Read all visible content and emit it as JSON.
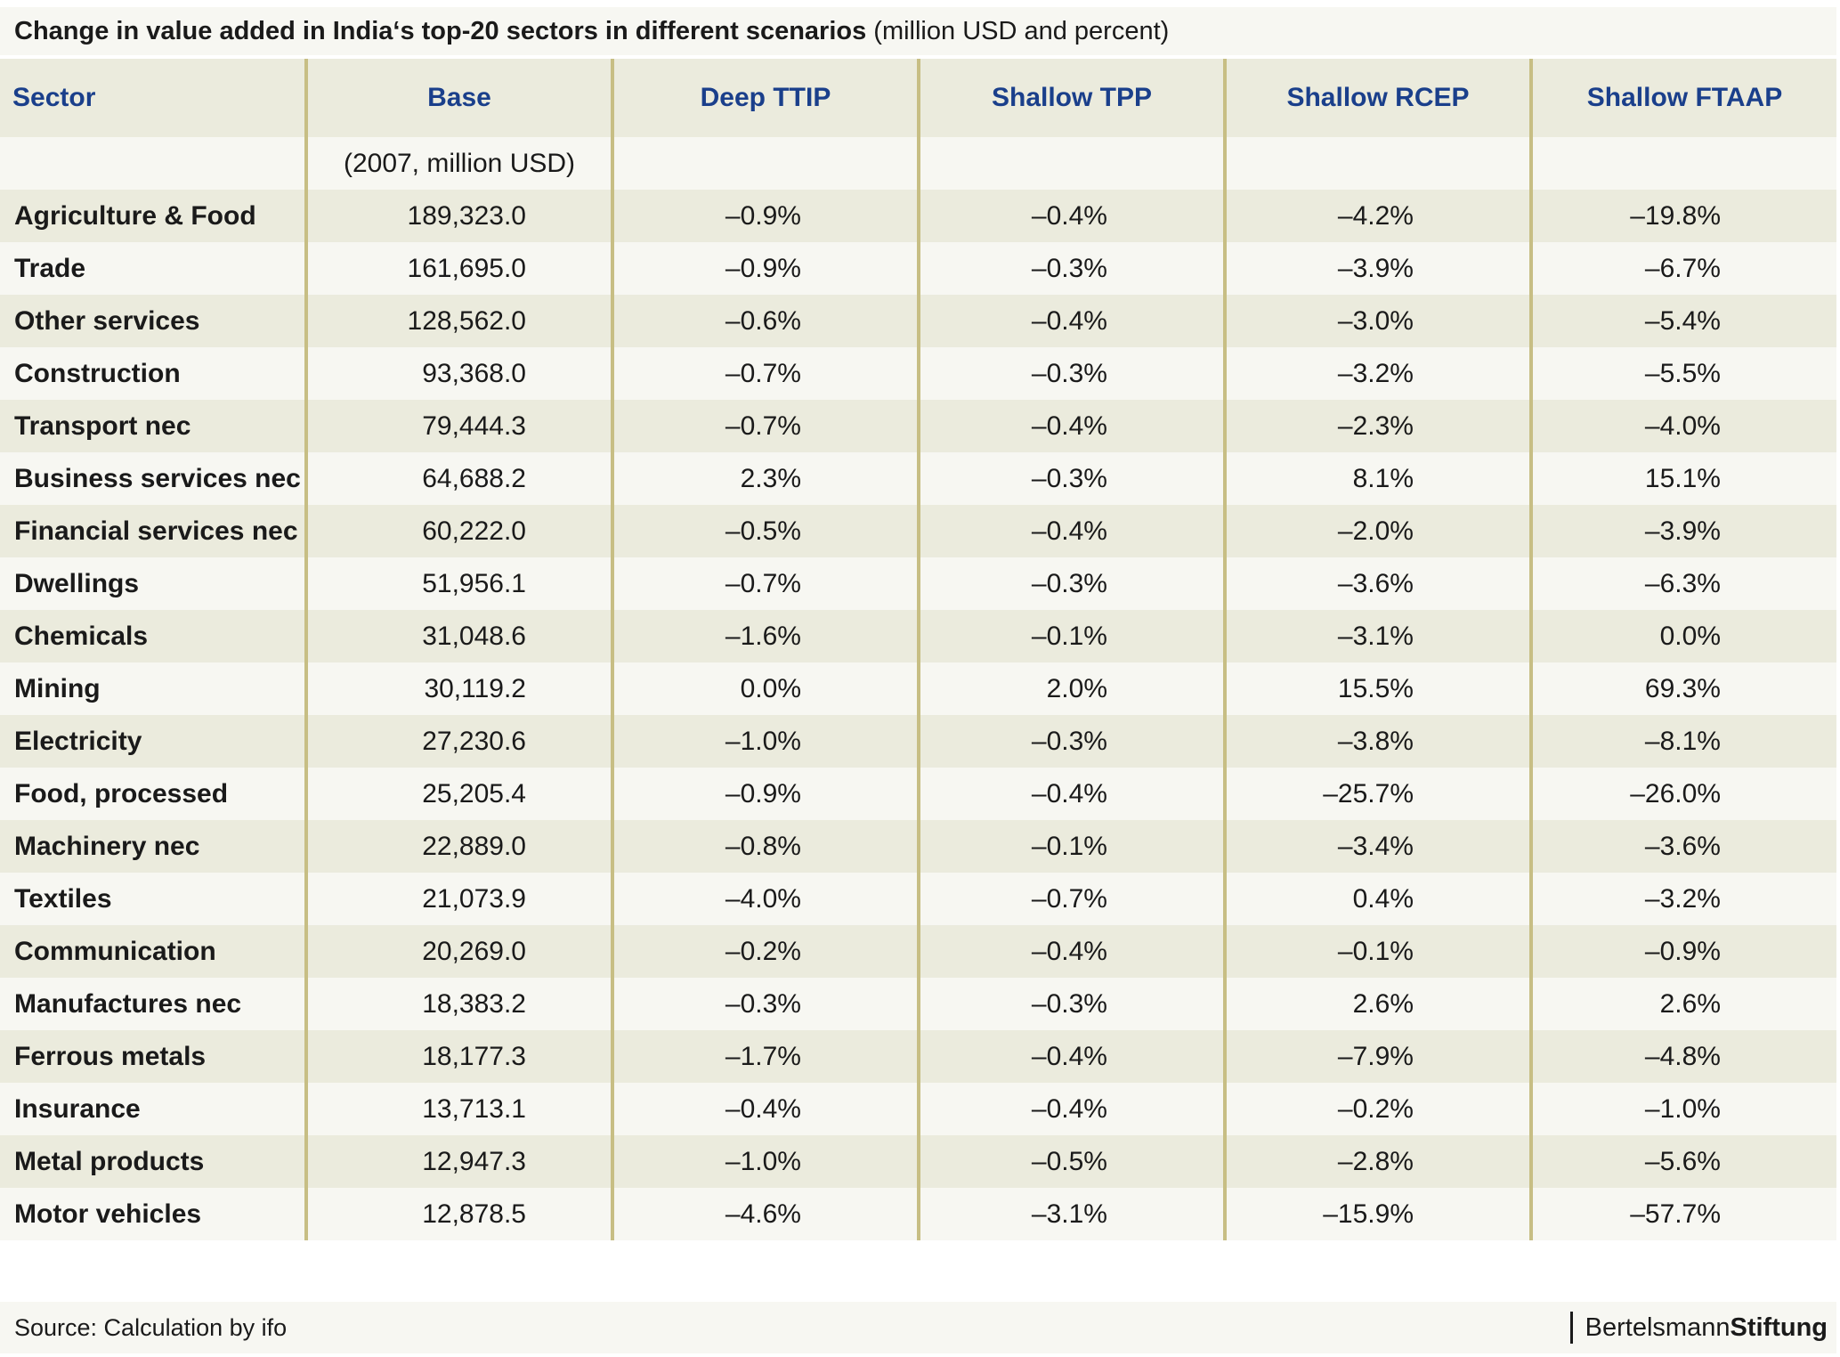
{
  "title": {
    "bold": "Change in value added in India‘s top-20 sectors in different scenarios",
    "normal": " (million USD and percent)"
  },
  "headers": [
    "Sector",
    "Base",
    "Deep TTIP",
    "Shallow TPP",
    "Shallow RCEP",
    "Shallow FTAAP"
  ],
  "unit_row": "(2007, million USD)",
  "rows": [
    {
      "sector": "Agriculture & Food",
      "base": "189,323.0",
      "ttip": "–0.9%",
      "tpp": "–0.4%",
      "rcep": "–4.2%",
      "ftaap": "–19.8%"
    },
    {
      "sector": "Trade",
      "base": "161,695.0",
      "ttip": "–0.9%",
      "tpp": "–0.3%",
      "rcep": "–3.9%",
      "ftaap": "–6.7%"
    },
    {
      "sector": "Other services",
      "base": "128,562.0",
      "ttip": "–0.6%",
      "tpp": "–0.4%",
      "rcep": "–3.0%",
      "ftaap": "–5.4%"
    },
    {
      "sector": "Construction",
      "base": "93,368.0",
      "ttip": "–0.7%",
      "tpp": "–0.3%",
      "rcep": "–3.2%",
      "ftaap": "–5.5%"
    },
    {
      "sector": "Transport nec",
      "base": "79,444.3",
      "ttip": "–0.7%",
      "tpp": "–0.4%",
      "rcep": "–2.3%",
      "ftaap": "–4.0%"
    },
    {
      "sector": "Business services nec",
      "base": "64,688.2",
      "ttip": "2.3%",
      "tpp": "–0.3%",
      "rcep": "8.1%",
      "ftaap": "15.1%"
    },
    {
      "sector": "Financial services nec",
      "base": "60,222.0",
      "ttip": "–0.5%",
      "tpp": "–0.4%",
      "rcep": "–2.0%",
      "ftaap": "–3.9%"
    },
    {
      "sector": "Dwellings",
      "base": "51,956.1",
      "ttip": "–0.7%",
      "tpp": "–0.3%",
      "rcep": "–3.6%",
      "ftaap": "–6.3%"
    },
    {
      "sector": "Chemicals",
      "base": "31,048.6",
      "ttip": "–1.6%",
      "tpp": "–0.1%",
      "rcep": "–3.1%",
      "ftaap": "0.0%"
    },
    {
      "sector": "Mining",
      "base": "30,119.2",
      "ttip": "0.0%",
      "tpp": "2.0%",
      "rcep": "15.5%",
      "ftaap": "69.3%"
    },
    {
      "sector": "Electricity",
      "base": "27,230.6",
      "ttip": "–1.0%",
      "tpp": "–0.3%",
      "rcep": "–3.8%",
      "ftaap": "–8.1%"
    },
    {
      "sector": "Food, processed",
      "base": "25,205.4",
      "ttip": "–0.9%",
      "tpp": "–0.4%",
      "rcep": "–25.7%",
      "ftaap": "–26.0%"
    },
    {
      "sector": "Machinery nec",
      "base": "22,889.0",
      "ttip": "–0.8%",
      "tpp": "–0.1%",
      "rcep": "–3.4%",
      "ftaap": "–3.6%"
    },
    {
      "sector": "Textiles",
      "base": "21,073.9",
      "ttip": "–4.0%",
      "tpp": "–0.7%",
      "rcep": "0.4%",
      "ftaap": "–3.2%"
    },
    {
      "sector": "Communication",
      "base": "20,269.0",
      "ttip": "–0.2%",
      "tpp": "–0.4%",
      "rcep": "–0.1%",
      "ftaap": "–0.9%"
    },
    {
      "sector": "Manufactures nec",
      "base": "18,383.2",
      "ttip": "–0.3%",
      "tpp": "–0.3%",
      "rcep": "2.6%",
      "ftaap": "2.6%"
    },
    {
      "sector": "Ferrous metals",
      "base": "18,177.3",
      "ttip": "–1.7%",
      "tpp": "–0.4%",
      "rcep": "–7.9%",
      "ftaap": "–4.8%"
    },
    {
      "sector": "Insurance",
      "base": "13,713.1",
      "ttip": "–0.4%",
      "tpp": "–0.4%",
      "rcep": "–0.2%",
      "ftaap": "–1.0%"
    },
    {
      "sector": "Metal products",
      "base": "12,947.3",
      "ttip": "–1.0%",
      "tpp": "–0.5%",
      "rcep": "–2.8%",
      "ftaap": "–5.6%"
    },
    {
      "sector": "Motor vehicles",
      "base": "12,878.5",
      "ttip": "–4.6%",
      "tpp": "–3.1%",
      "rcep": "–15.9%",
      "ftaap": "–57.7%"
    }
  ],
  "footer": {
    "source": "Source: Calculation by ifo",
    "brand_part1": "Bertelsmann",
    "brand_part2": "Stiftung"
  },
  "colors": {
    "header_text": "#1a3f8b",
    "band_dark": "#ebebdd",
    "band_light": "#f7f7f2",
    "separator": "#c7be84"
  }
}
